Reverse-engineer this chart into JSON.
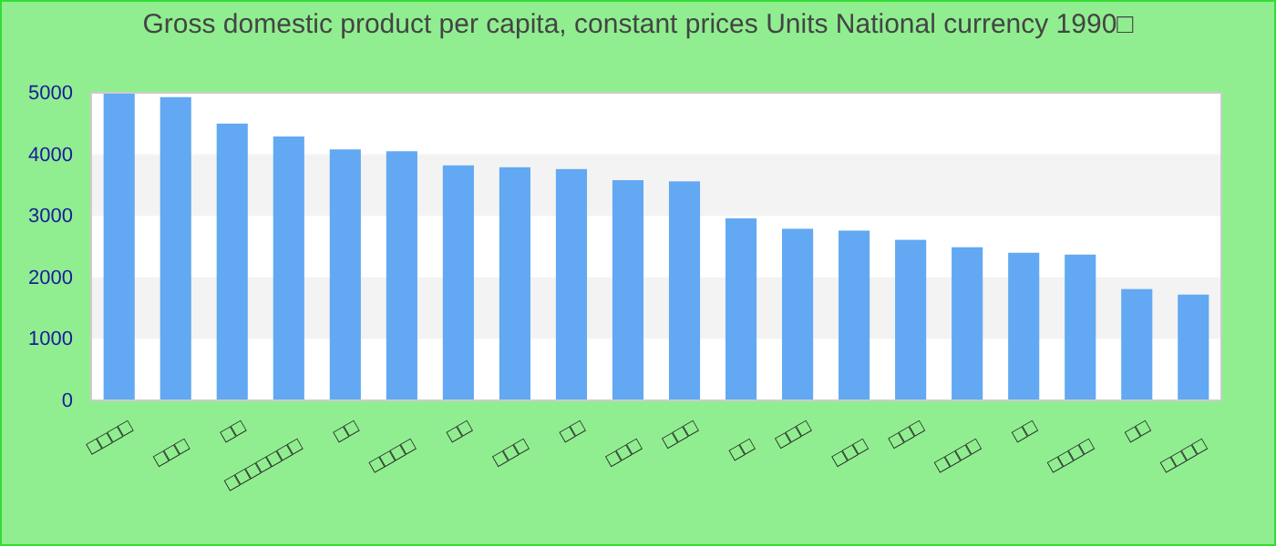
{
  "chart_data": {
    "type": "bar",
    "title": "Gross domestic product per capita, constant prices Units National currency 1990□",
    "categories": [
      "□□□□",
      "□□□",
      "□□",
      "□□□□□□□",
      "□□",
      "□□□□",
      "□□",
      "□□□",
      "□□",
      "□□□",
      "□□□",
      "□□",
      "□□□",
      "□□□",
      "□□□",
      "□□□□",
      "□□",
      "□□□□",
      "□□",
      "□□□□"
    ],
    "values": [
      4990,
      4930,
      4500,
      4290,
      4080,
      4050,
      3820,
      3790,
      3760,
      3580,
      3560,
      2960,
      2790,
      2760,
      2610,
      2490,
      2400,
      2370,
      1810,
      1720
    ],
    "color": "#62a8f2",
    "ylim": [
      0,
      5000
    ],
    "yticks": [
      0,
      1000,
      2000,
      3000,
      4000,
      5000
    ],
    "bands": [
      {
        "axis": "y",
        "from": 1000,
        "to": 2000,
        "color": "#f3f3f3"
      },
      {
        "axis": "y",
        "from": 3000,
        "to": 4000,
        "color": "#f3f3f3"
      }
    ]
  }
}
